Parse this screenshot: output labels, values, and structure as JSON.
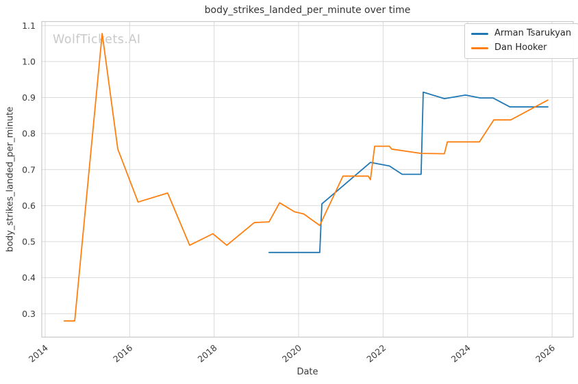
{
  "page": {
    "watermark": "WolfTickets.AI"
  },
  "chart_data": {
    "type": "line",
    "title": "body_strikes_landed_per_minute over time",
    "xlabel": "Date",
    "ylabel": "body_strikes_landed_per_minute",
    "x_ticks": [
      2014,
      2016,
      2018,
      2020,
      2022,
      2024,
      2026
    ],
    "y_ticks": [
      0.3,
      0.4,
      0.5,
      0.6,
      0.7,
      0.8,
      0.9,
      1.0,
      1.1
    ],
    "x_range": [
      2013.92,
      2026.5
    ],
    "y_range": [
      0.235,
      1.111
    ],
    "grid": true,
    "legend_position": "upper right",
    "series": [
      {
        "name": "Arman Tsarukyan",
        "color": "#1f77b4",
        "points": [
          [
            2019.3,
            0.47
          ],
          [
            2020.5,
            0.47
          ],
          [
            2020.55,
            0.605
          ],
          [
            2020.9,
            0.64
          ],
          [
            2021.7,
            0.72
          ],
          [
            2022.15,
            0.71
          ],
          [
            2022.45,
            0.687
          ],
          [
            2022.9,
            0.687
          ],
          [
            2022.95,
            0.915
          ],
          [
            2023.45,
            0.897
          ],
          [
            2023.95,
            0.907
          ],
          [
            2024.3,
            0.899
          ],
          [
            2024.6,
            0.899
          ],
          [
            2025.0,
            0.874
          ],
          [
            2025.9,
            0.874
          ]
        ]
      },
      {
        "name": "Dan Hooker",
        "color": "#ff7f0e",
        "points": [
          [
            2014.45,
            0.28
          ],
          [
            2014.7,
            0.28
          ],
          [
            2015.35,
            1.078
          ],
          [
            2015.72,
            0.757
          ],
          [
            2016.2,
            0.61
          ],
          [
            2016.9,
            0.635
          ],
          [
            2017.42,
            0.49
          ],
          [
            2017.97,
            0.522
          ],
          [
            2018.3,
            0.49
          ],
          [
            2018.95,
            0.553
          ],
          [
            2019.3,
            0.555
          ],
          [
            2019.55,
            0.608
          ],
          [
            2019.9,
            0.583
          ],
          [
            2020.12,
            0.577
          ],
          [
            2020.5,
            0.545
          ],
          [
            2021.05,
            0.682
          ],
          [
            2021.65,
            0.682
          ],
          [
            2021.7,
            0.672
          ],
          [
            2021.8,
            0.765
          ],
          [
            2022.15,
            0.765
          ],
          [
            2022.2,
            0.757
          ],
          [
            2022.9,
            0.745
          ],
          [
            2023.45,
            0.744
          ],
          [
            2023.52,
            0.777
          ],
          [
            2024.28,
            0.777
          ],
          [
            2024.62,
            0.838
          ],
          [
            2025.02,
            0.838
          ],
          [
            2025.9,
            0.893
          ]
        ]
      }
    ],
    "colors": {
      "grid": "#d9d9d9",
      "spine": "#c8c8c8",
      "tick_label": "#3a3a3a",
      "title": "#333333",
      "watermark": "#c9c9c9"
    }
  }
}
